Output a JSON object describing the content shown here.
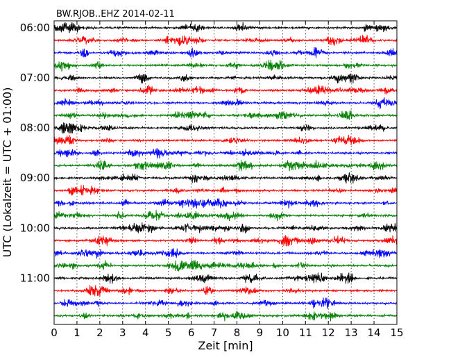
{
  "chart_data": {
    "type": "line",
    "title": "BW.RJOB..EHZ 2014-02-11",
    "xlabel": "Zeit  [min]",
    "ylabel": "UTC (Lokalzeit = UTC + 01:00)",
    "xlim": [
      0,
      15
    ],
    "x_ticks": [
      "0",
      "1",
      "2",
      "3",
      "4",
      "5",
      "6",
      "7",
      "8",
      "9",
      "10",
      "11",
      "12",
      "13",
      "14",
      "15"
    ],
    "y_ticks": [
      "06:00",
      "07:00",
      "08:00",
      "09:00",
      "10:00",
      "11:00"
    ],
    "vertical_grid": "dotted at every minute",
    "trace_interval_minutes": 15,
    "traces_per_hour": 4,
    "trace_count": 24,
    "trace_colors": [
      "#000000",
      "#ff0000",
      "#0000ff",
      "#008000"
    ]
  }
}
